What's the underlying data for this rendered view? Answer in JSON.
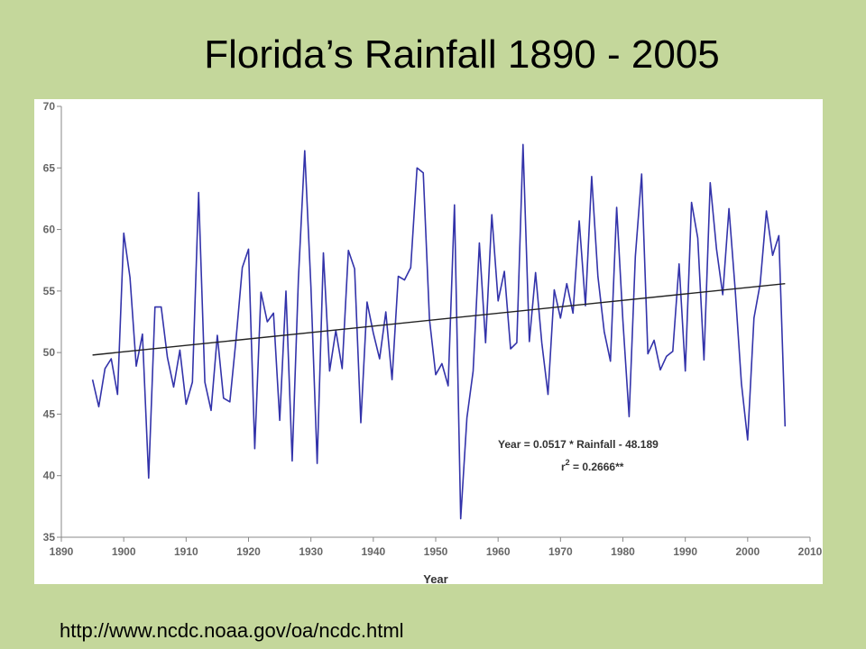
{
  "title": "Florida’s Rainfall 1890 - 2005",
  "source_url": "http://www.ncdc.noaa.gov/oa/ncdc.html",
  "colors": {
    "background": "#c4d79b",
    "series": "#3333aa",
    "trend": "#222222",
    "axis": "#888888"
  },
  "chart_data": {
    "type": "line",
    "xlabel": "Year",
    "ylabel": "",
    "xlim": [
      1890,
      2010
    ],
    "ylim": [
      35,
      70
    ],
    "x_ticks": [
      1890,
      1900,
      1910,
      1920,
      1930,
      1940,
      1950,
      1960,
      1970,
      1980,
      1990,
      2000,
      2010
    ],
    "y_ticks": [
      35,
      40,
      45,
      50,
      55,
      60,
      65,
      70
    ],
    "grid": false,
    "legend": "none",
    "annotation": {
      "line1": "Year = 0.0517 * Rainfall - 48.189",
      "line2_prefix": "r",
      "line2_sup": "2",
      "line2_suffix": " = 0.2666**"
    },
    "series": [
      {
        "x": [
          1895,
          1896,
          1897,
          1898,
          1899,
          1900,
          1901,
          1902,
          1903,
          1904,
          1905,
          1906,
          1907,
          1908,
          1909,
          1910,
          1911,
          1912,
          1913,
          1914,
          1915,
          1916,
          1917,
          1918,
          1919,
          1920,
          1921,
          1922,
          1923,
          1924,
          1925,
          1926,
          1927,
          1928,
          1929,
          1930,
          1931,
          1932,
          1933,
          1934,
          1935,
          1936,
          1937,
          1938,
          1939,
          1940,
          1941,
          1942,
          1943,
          1944,
          1945,
          1946,
          1947,
          1948,
          1949,
          1950,
          1951,
          1952,
          1953,
          1954,
          1955,
          1956,
          1957,
          1958,
          1959,
          1960,
          1961,
          1962,
          1963,
          1964,
          1965,
          1966,
          1967,
          1968,
          1969,
          1970,
          1971,
          1972,
          1973,
          1974,
          1975,
          1976,
          1977,
          1978,
          1979,
          1980,
          1981,
          1982,
          1983,
          1984,
          1985,
          1986,
          1987,
          1988,
          1989,
          1990,
          1991,
          1992,
          1993,
          1994,
          1995,
          1996,
          1997,
          1998,
          1999,
          2000,
          2001,
          2002,
          2003,
          2004,
          2005,
          2006
        ],
        "values": [
          47.8,
          45.6,
          48.7,
          49.5,
          46.6,
          59.7,
          56.1,
          48.9,
          51.5,
          39.8,
          53.7,
          53.7,
          49.6,
          47.2,
          50.2,
          45.8,
          47.6,
          63.0,
          47.6,
          45.3,
          51.4,
          46.3,
          46.0,
          51.1,
          56.9,
          58.4,
          42.2,
          54.9,
          52.5,
          53.2,
          44.5,
          55.0,
          41.2,
          56.0,
          66.4,
          55.3,
          41.0,
          58.1,
          48.5,
          51.8,
          48.7,
          58.3,
          56.8,
          44.3,
          54.1,
          51.6,
          49.5,
          53.3,
          47.8,
          56.2,
          55.9,
          56.9,
          65.0,
          64.6,
          52.7,
          48.2,
          49.1,
          47.3,
          62.0,
          36.5,
          44.7,
          48.5,
          58.9,
          50.8,
          61.2,
          54.2,
          56.6,
          50.3,
          50.8,
          66.9,
          50.9,
          56.5,
          50.8,
          46.6,
          55.1,
          52.8,
          55.6,
          53.2,
          60.7,
          53.8,
          64.3,
          56.2,
          51.7,
          49.3,
          61.8,
          52.6,
          44.8,
          57.8,
          64.5,
          49.9,
          51.0,
          48.6,
          49.7,
          50.1,
          57.2,
          48.5,
          62.2,
          59.3,
          49.4,
          63.8,
          58.4,
          54.7,
          61.7,
          55.1,
          47.5,
          42.9,
          52.8,
          55.6,
          61.5,
          57.9,
          59.5,
          44.0
        ]
      }
    ],
    "trend_line": {
      "x": [
        1895,
        2006
      ],
      "values": [
        49.8,
        55.6
      ]
    }
  }
}
